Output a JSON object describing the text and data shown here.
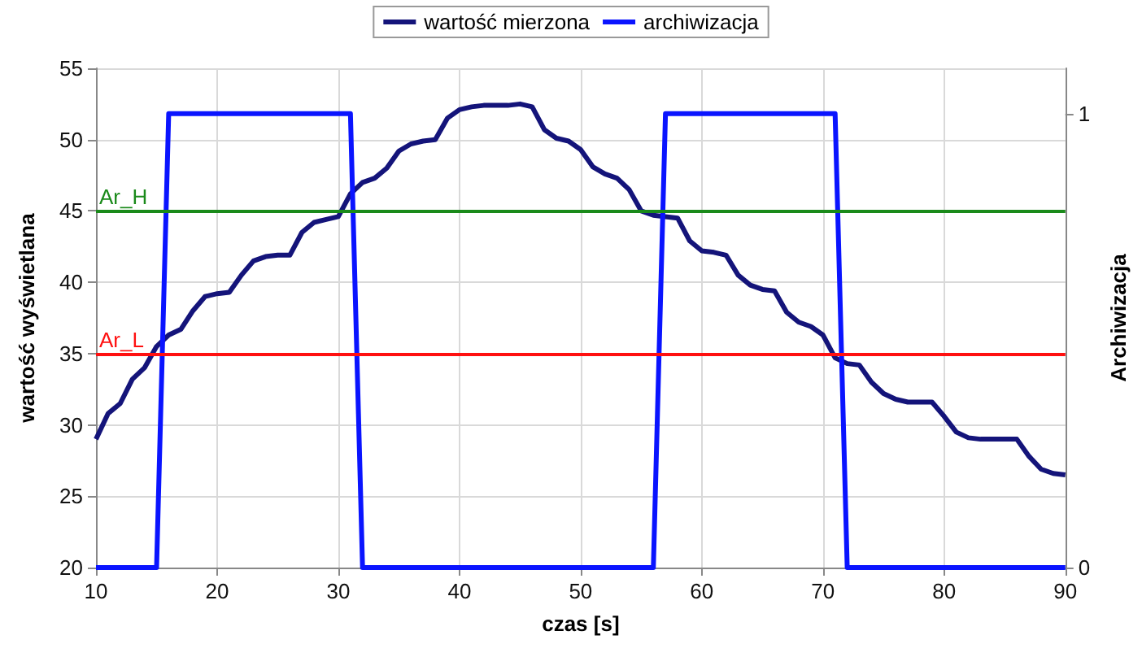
{
  "chart_data": {
    "type": "line",
    "xlabel": "czas [s]",
    "ylabel": "wartość wyświetlana",
    "y2label": "Archiwizacja",
    "xlim": [
      10,
      90
    ],
    "xticks": [
      10,
      20,
      30,
      40,
      50,
      60,
      70,
      80,
      90
    ],
    "ylim": [
      20,
      55
    ],
    "yticks": [
      20,
      25,
      30,
      35,
      40,
      45,
      50,
      55
    ],
    "y2lim": [
      0,
      1.1
    ],
    "y2ticks": [
      0,
      1
    ],
    "grid": true,
    "legend": "top",
    "marker": "none",
    "line_style": "solid",
    "series": [
      {
        "name": "wartość mierzona",
        "color": "#14147a",
        "x": [
          10,
          11,
          12,
          13,
          14,
          15,
          16,
          17,
          18,
          19,
          20,
          21,
          22,
          23,
          24,
          25,
          26,
          27,
          28,
          29,
          30,
          31,
          32,
          33,
          34,
          35,
          36,
          37,
          38,
          39,
          40,
          41,
          42,
          43,
          44,
          45,
          46,
          47,
          48,
          49,
          50,
          51,
          52,
          53,
          54,
          55,
          56,
          57,
          58,
          59,
          60,
          61,
          62,
          63,
          64,
          65,
          66,
          67,
          68,
          69,
          70,
          71,
          72,
          73,
          74,
          75,
          76,
          77,
          78,
          79,
          80,
          81,
          82,
          83,
          84,
          85,
          86,
          87,
          88,
          89,
          90
        ],
        "values": [
          29,
          30.8,
          31.5,
          33.2,
          34,
          35.5,
          36.3,
          36.7,
          38,
          39,
          39.2,
          39.3,
          40.5,
          41.5,
          41.8,
          41.9,
          41.9,
          43.5,
          44.2,
          44.4,
          44.6,
          46.2,
          47,
          47.3,
          48,
          49.2,
          49.7,
          49.9,
          50,
          51.5,
          52.1,
          52.3,
          52.4,
          52.4,
          52.4,
          52.5,
          52.3,
          50.7,
          50.1,
          49.9,
          49.3,
          48.1,
          47.6,
          47.3,
          46.5,
          45,
          44.7,
          44.6,
          44.5,
          42.9,
          42.2,
          42.1,
          41.9,
          40.5,
          39.8,
          39.5,
          39.4,
          37.9,
          37.2,
          36.9,
          36.3,
          34.7,
          34.3,
          34.2,
          33,
          32.2,
          31.8,
          31.6,
          31.6,
          31.6,
          30.6,
          29.5,
          29.1,
          29,
          29,
          29,
          29,
          27.8,
          26.9,
          26.6,
          26.5
        ]
      },
      {
        "name": "archiwizacja",
        "color": "#0a14ff",
        "axis": "y2",
        "x": [
          10,
          15,
          16,
          31,
          32,
          56,
          57,
          71,
          72,
          90
        ],
        "values": [
          0,
          0,
          1,
          1,
          0,
          0,
          1,
          1,
          0,
          0
        ]
      }
    ],
    "ref_lines": [
      {
        "axis": "y",
        "value": 45,
        "label": "Ar_H",
        "color": "#1a8a1a"
      },
      {
        "axis": "y",
        "value": 35,
        "label": "Ar_L",
        "color": "#ff1010"
      }
    ]
  }
}
